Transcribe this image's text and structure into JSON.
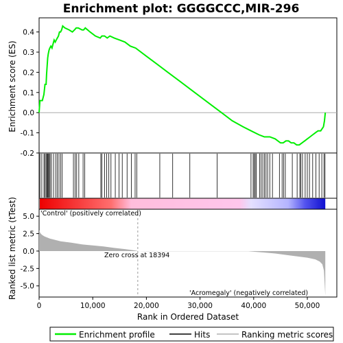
{
  "chart_data": {
    "type": "line",
    "title": "Enrichment plot: GGGGCCC,MIR-296",
    "xlabel": "Rank in Ordered Dataset",
    "xlim": [
      0,
      55500
    ],
    "x_ticks": [
      0,
      10000,
      20000,
      30000,
      40000,
      50000
    ],
    "x_tick_labels": [
      "0",
      "10,000",
      "20,000",
      "30,000",
      "40,000",
      "50,000"
    ],
    "panels": {
      "enrichment": {
        "ylabel": "Enrichment score (ES)",
        "ylim": [
          -0.2,
          0.47
        ],
        "y_ticks": [
          -0.2,
          -0.1,
          0.0,
          0.1,
          0.2,
          0.3,
          0.4
        ],
        "y_tick_labels": [
          "-0.2",
          "-0.1",
          "0.0",
          "0.1",
          "0.2",
          "0.3",
          "0.4"
        ],
        "series": [
          {
            "name": "Enrichment profile",
            "color": "#00ee00",
            "points": [
              [
                0,
                0.0
              ],
              [
                150,
                0.06
              ],
              [
                600,
                0.06
              ],
              [
                900,
                0.09
              ],
              [
                1100,
                0.14
              ],
              [
                1300,
                0.14
              ],
              [
                1400,
                0.19
              ],
              [
                1600,
                0.27
              ],
              [
                1700,
                0.29
              ],
              [
                1850,
                0.31
              ],
              [
                2000,
                0.32
              ],
              [
                2200,
                0.33
              ],
              [
                2400,
                0.32
              ],
              [
                2600,
                0.34
              ],
              [
                2800,
                0.36
              ],
              [
                3000,
                0.35
              ],
              [
                3200,
                0.36
              ],
              [
                3400,
                0.37
              ],
              [
                3600,
                0.38
              ],
              [
                3800,
                0.4
              ],
              [
                4000,
                0.4
              ],
              [
                4200,
                0.41
              ],
              [
                4400,
                0.43
              ],
              [
                4800,
                0.42
              ],
              [
                5600,
                0.41
              ],
              [
                6200,
                0.4
              ],
              [
                6600,
                0.41
              ],
              [
                6900,
                0.42
              ],
              [
                7300,
                0.42
              ],
              [
                8000,
                0.41
              ],
              [
                8300,
                0.41
              ],
              [
                8600,
                0.42
              ],
              [
                9500,
                0.4
              ],
              [
                10500,
                0.38
              ],
              [
                11400,
                0.37
              ],
              [
                11700,
                0.38
              ],
              [
                12200,
                0.38
              ],
              [
                12700,
                0.37
              ],
              [
                13200,
                0.38
              ],
              [
                14000,
                0.37
              ],
              [
                15000,
                0.36
              ],
              [
                16000,
                0.35
              ],
              [
                17000,
                0.33
              ],
              [
                18000,
                0.32
              ],
              [
                20000,
                0.28
              ],
              [
                22000,
                0.24
              ],
              [
                24000,
                0.2
              ],
              [
                26000,
                0.16
              ],
              [
                28000,
                0.12
              ],
              [
                30000,
                0.08
              ],
              [
                32000,
                0.04
              ],
              [
                34000,
                0.0
              ],
              [
                36000,
                -0.04
              ],
              [
                38000,
                -0.07
              ],
              [
                39500,
                -0.09
              ],
              [
                41000,
                -0.11
              ],
              [
                42000,
                -0.12
              ],
              [
                43000,
                -0.12
              ],
              [
                44000,
                -0.13
              ],
              [
                45000,
                -0.15
              ],
              [
                45500,
                -0.15
              ],
              [
                46000,
                -0.14
              ],
              [
                46500,
                -0.14
              ],
              [
                47000,
                -0.15
              ],
              [
                47500,
                -0.15
              ],
              [
                48000,
                -0.16
              ],
              [
                48500,
                -0.16
              ],
              [
                49000,
                -0.15
              ],
              [
                49500,
                -0.14
              ],
              [
                50000,
                -0.13
              ],
              [
                50500,
                -0.12
              ],
              [
                51000,
                -0.11
              ],
              [
                51500,
                -0.1
              ],
              [
                52000,
                -0.09
              ],
              [
                52500,
                -0.09
              ],
              [
                53000,
                -0.07
              ],
              [
                53200,
                -0.04
              ],
              [
                53350,
                0.0
              ]
            ]
          }
        ]
      },
      "hits": {
        "legend": "Hits",
        "color": "#000000",
        "ranks": [
          150,
          500,
          900,
          1100,
          1300,
          1450,
          1600,
          1750,
          1900,
          2050,
          2300,
          2700,
          3100,
          3400,
          3700,
          4000,
          4300,
          6400,
          6700,
          7000,
          7400,
          8200,
          8500,
          11500,
          11700,
          12200,
          12600,
          13000,
          13400,
          14200,
          14900,
          15500,
          16400,
          17200,
          17900,
          18200,
          22500,
          24900,
          28100,
          33200,
          39500,
          39900,
          40100,
          40300,
          40500,
          41100,
          41400,
          41700,
          42000,
          42300,
          42600,
          43000,
          43500,
          44800,
          45300,
          45600,
          45900,
          47200,
          48100,
          48600,
          48800,
          49100,
          49600,
          50000,
          50400,
          51000,
          51600,
          52200,
          52700,
          53100,
          53300
        ]
      },
      "ranking_metric": {
        "ylabel": "Ranked list metric (tTest)",
        "legend": "Ranking metric scores",
        "color": "#b0b0b0",
        "ylim": [
          -6.6,
          6.0
        ],
        "y_ticks": [
          -5.0,
          -2.5,
          0.0,
          2.5,
          5.0
        ],
        "y_tick_labels": [
          "-5.0",
          "-2.5",
          "0.0",
          "2.5",
          "5.0"
        ],
        "points": [
          [
            0,
            3.0
          ],
          [
            200,
            2.6
          ],
          [
            500,
            2.35
          ],
          [
            1000,
            2.1
          ],
          [
            2000,
            1.8
          ],
          [
            3000,
            1.6
          ],
          [
            4000,
            1.4
          ],
          [
            6000,
            1.2
          ],
          [
            8000,
            0.95
          ],
          [
            10000,
            0.8
          ],
          [
            12000,
            0.65
          ],
          [
            14000,
            0.45
          ],
          [
            16000,
            0.28
          ],
          [
            18000,
            0.06
          ],
          [
            18394,
            0.0
          ],
          [
            20000,
            -0.02
          ],
          [
            30000,
            -0.02
          ],
          [
            39000,
            -0.03
          ],
          [
            41000,
            -0.15
          ],
          [
            44000,
            -0.35
          ],
          [
            47000,
            -0.65
          ],
          [
            50000,
            -0.95
          ],
          [
            51500,
            -1.2
          ],
          [
            52300,
            -1.5
          ],
          [
            52800,
            -1.9
          ],
          [
            53100,
            -2.8
          ],
          [
            53350,
            -6.4
          ]
        ]
      }
    },
    "annotations": {
      "zero_cross": "Zero cross at 18394",
      "zero_cross_rank": 18394,
      "positive_label": "'Control' (positively correlated)",
      "negative_label": "'Acromegaly' (negatively correlated)",
      "positive_color": "#cc0000",
      "negative_color": "#0000cc"
    },
    "legend": {
      "items": [
        "Enrichment profile",
        "Hits",
        "Ranking metric scores"
      ],
      "placement": "bottom"
    }
  }
}
